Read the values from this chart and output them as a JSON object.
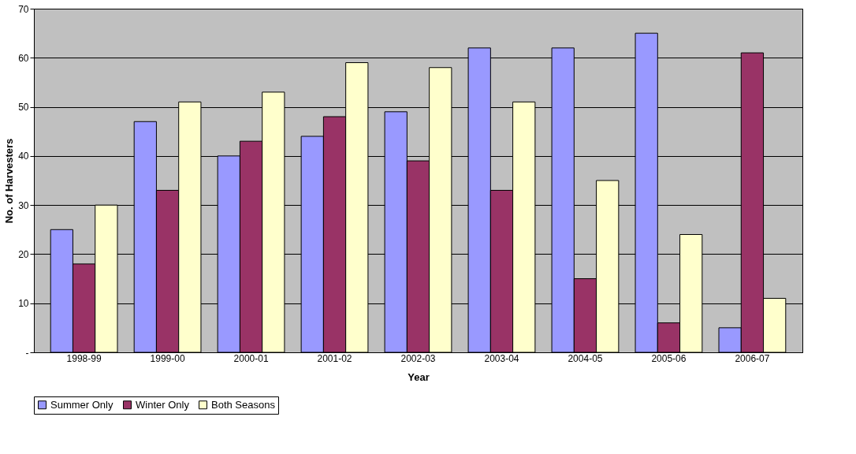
{
  "chart_data": {
    "type": "bar",
    "xlabel": "Year",
    "ylabel": "No. of Harvesters",
    "categories": [
      "1998-99",
      "1999-00",
      "2000-01",
      "2001-02",
      "2002-03",
      "2003-04",
      "2004-05",
      "2005-06",
      "2006-07"
    ],
    "series": [
      {
        "name": "Summer Only",
        "color": "#9999ff",
        "values": [
          25,
          47,
          40,
          44,
          49,
          62,
          62,
          65,
          5
        ]
      },
      {
        "name": "Winter Only",
        "color": "#993366",
        "values": [
          18,
          33,
          43,
          48,
          39,
          33,
          15,
          6,
          61
        ]
      },
      {
        "name": "Both Seasons",
        "color": "#ffffcc",
        "values": [
          30,
          51,
          53,
          59,
          58,
          51,
          35,
          24,
          11
        ]
      }
    ],
    "ylim": [
      0,
      70
    ],
    "yticks": [
      {
        "value": 0,
        "label": "-"
      },
      10,
      20,
      30,
      40,
      50,
      60,
      70
    ],
    "grid": "y",
    "legend": "bottom"
  }
}
